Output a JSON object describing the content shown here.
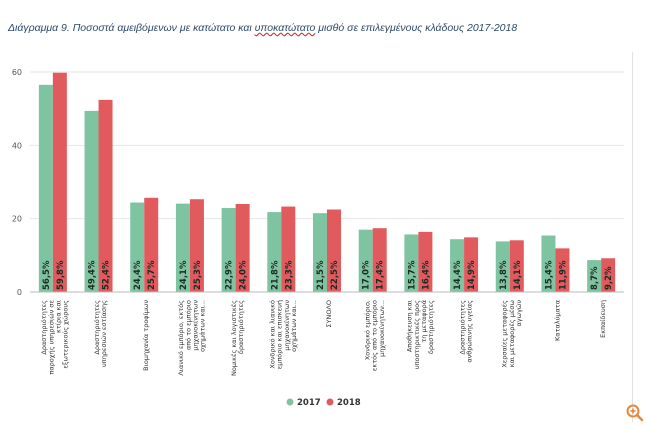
{
  "title_prefix": "Διάγραμμα 9. Ποσοστά αμειβόμενων με κατώτατο και ",
  "title_underlined": "υποκατώτατο",
  "title_suffix": " μισθό σε επιλεγμένους κλάδους 2017-2018",
  "colors": {
    "s2017": "#7fc4a0",
    "s2018": "#e05a5e",
    "grid": "#e6e6e6",
    "text": "#333333",
    "zoom": "#e8873a"
  },
  "chart_data": {
    "type": "bar",
    "title": "Διάγραμμα 9. Ποσοστά αμειβόμενων με κατώτατο και υποκατώτατο μισθό σε επιλεγμένους κλάδους 2017-2018",
    "ylim": [
      0,
      60
    ],
    "yticks": [
      "0",
      "20",
      "40",
      "60"
    ],
    "legend_position": "bottom",
    "categories": [
      [
        "Δραστηριότητες",
        "παροχής υπηρεσιών σε",
        "κτίρια και",
        "εξωτερικούς χώρους"
      ],
      [
        "Δραστηριότητες",
        "υπηρεσιών εστίασης"
      ],
      [
        "Βιομηχανία τροφίμων"
      ],
      [
        "Λιανικό εμπόριο, εκτός",
        "από το εμπόριο",
        "μηχανοκίνητων",
        "οχημάτων και..."
      ],
      [
        "Νομικές και λογιστικές",
        "δραστηριότητες"
      ],
      [
        "Χονδρικό και λιανικό",
        "εμπόριο και επισκευή",
        "μηχανοκίνητων",
        "οχημάτων και..."
      ],
      [
        "ΣΥΝΟΛΟ"
      ],
      [
        "Χονδρικό εμπόριο,",
        "εκτός από το εμπόριο",
        "μηχανοκίνητων..."
      ],
      [
        "Αποθήκευση και",
        "υποστηρικτικές προς",
        "τη μεταφορά",
        "δραστηριότητες"
      ],
      [
        "Δραστηριότητες",
        "ανθρώπινης υγείας"
      ],
      [
        "Χερσαίες μεταφορές",
        "και μεταφορές μέσω",
        "αγωγών"
      ],
      [
        "Καταλύματα"
      ],
      [
        "Εκπαίδευση"
      ]
    ],
    "series": [
      {
        "name": "2017",
        "values": [
          56.5,
          49.4,
          24.4,
          24.1,
          22.9,
          21.8,
          21.5,
          17.0,
          15.7,
          14.4,
          13.8,
          15.4,
          8.7
        ],
        "labels": [
          "56,5",
          "49,4",
          "24,4",
          "24,1",
          "22,9",
          "21,8",
          "21,5",
          "17,0",
          "15,7",
          "14,4",
          "13,8",
          "15,4",
          "8,7"
        ]
      },
      {
        "name": "2018",
        "values": [
          59.8,
          52.4,
          25.7,
          25.3,
          24.0,
          23.3,
          22.5,
          17.4,
          16.4,
          14.9,
          14.1,
          11.9,
          9.2
        ],
        "labels": [
          "59,8",
          "52,4",
          "25,7",
          "25,3",
          "24,0",
          "23,3",
          "22,5",
          "17,4",
          "16,4",
          "14,9",
          "14,1",
          "11,9",
          "9,2"
        ]
      }
    ]
  }
}
